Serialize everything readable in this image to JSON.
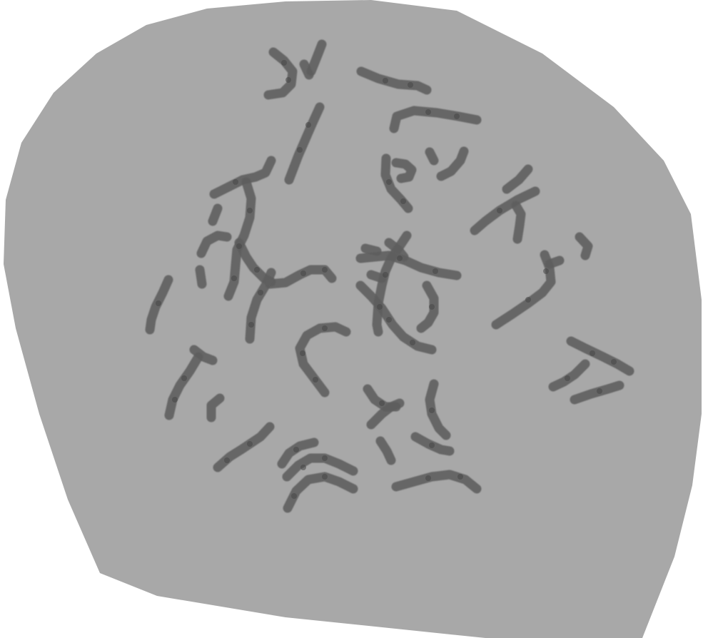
{
  "image": {
    "subject": "chromosome-metaphase-spread",
    "colors": {
      "outside": "#ffffff",
      "cell_area": "#a8a8a8",
      "chromosome": "#5e5e5e",
      "band": "#454545"
    }
  }
}
